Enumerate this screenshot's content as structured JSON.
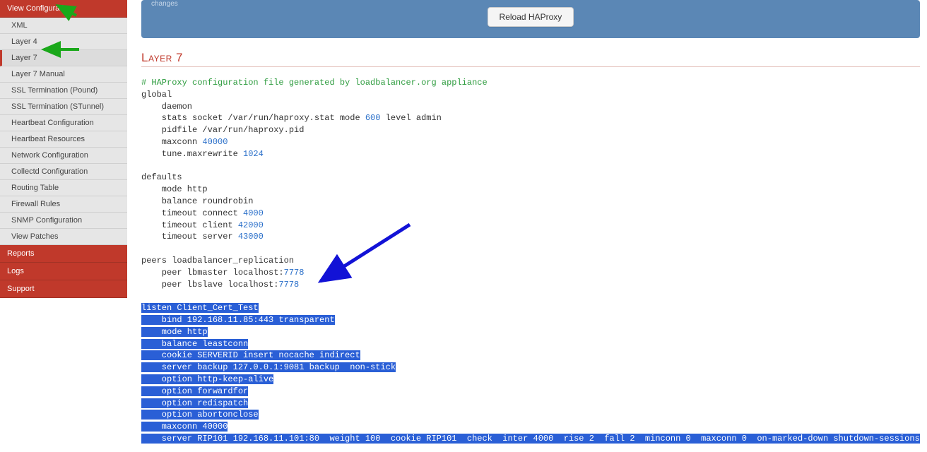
{
  "sidebar": {
    "header_view_config": "View Configuration",
    "items": [
      {
        "label": "XML",
        "active": false
      },
      {
        "label": "Layer 4",
        "active": false
      },
      {
        "label": "Layer 7",
        "active": true
      },
      {
        "label": "Layer 7 Manual",
        "active": false
      },
      {
        "label": "SSL Termination (Pound)",
        "active": false
      },
      {
        "label": "SSL Termination (STunnel)",
        "active": false
      },
      {
        "label": "Heartbeat Configuration",
        "active": false
      },
      {
        "label": "Heartbeat Resources",
        "active": false
      },
      {
        "label": "Network Configuration",
        "active": false
      },
      {
        "label": "Collectd Configuration",
        "active": false
      },
      {
        "label": "Routing Table",
        "active": false
      },
      {
        "label": "Firewall Rules",
        "active": false
      },
      {
        "label": "SNMP Configuration",
        "active": false
      },
      {
        "label": "View Patches",
        "active": false
      }
    ],
    "header_reports": "Reports",
    "header_logs": "Logs",
    "header_support": "Support"
  },
  "topbox": {
    "cut_text": "changes",
    "reload_label": "Reload HAProxy"
  },
  "section_title": "Layer 7",
  "code": {
    "comment": "# HAProxy configuration file generated by loadbalancer.org appliance",
    "g_global": "global",
    "g_daemon": "    daemon",
    "g_stats_a": "    stats socket /var/run/haproxy.stat mode ",
    "g_stats_num": "600",
    "g_stats_b": " level admin",
    "g_pidfile": "    pidfile /var/run/haproxy.pid",
    "g_maxconn_a": "    maxconn ",
    "g_maxconn_num": "40000",
    "g_tune_a": "    tune.maxrewrite ",
    "g_tune_num": "1024",
    "d_defaults": "defaults",
    "d_mode": "    mode http",
    "d_balance": "    balance roundrobin",
    "d_tc_a": "    timeout connect ",
    "d_tc_num": "4000",
    "d_tcl_a": "    timeout client ",
    "d_tcl_num": "42000",
    "d_ts_a": "    timeout server ",
    "d_ts_num": "43000",
    "p_peers": "peers loadbalancer_replication",
    "p_master_a": "    peer lbmaster localhost:",
    "p_master_num": "7778",
    "p_slave_a": "    peer lbslave localhost:",
    "p_slave_num": "7778",
    "h1": "listen Client_Cert_Test",
    "h2": "    bind 192.168.11.85:443 transparent",
    "h3": "    mode http",
    "h4": "    balance leastconn",
    "h5": "    cookie SERVERID insert nocache indirect",
    "h6": "    server backup 127.0.0.1:9081 backup  non-stick",
    "h7": "    option http-keep-alive",
    "h8": "    option forwardfor",
    "h9": "    option redispatch",
    "h10": "    option abortonclose",
    "h11": "    maxconn 40000",
    "h12": "    server RIP101 192.168.11.101:80  weight 100  cookie RIP101  check  inter 4000  rise 2  fall 2  minconn 0  maxconn 0  on-marked-down shutdown-sessions"
  },
  "colors": {
    "brand_red": "#c0392b",
    "sidebar_bg": "#e6e6e6",
    "topbox_bg": "#5b87b5",
    "highlight_bg": "#2a5fd6",
    "comment_color": "#2e9c3f",
    "number_color": "#2a6fc9",
    "green_arrow": "#1aa81a",
    "blue_arrow": "#1212d6"
  }
}
